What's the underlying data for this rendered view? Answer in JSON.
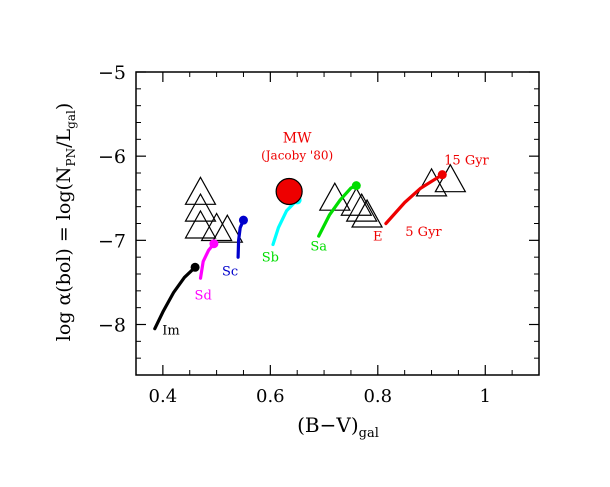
{
  "chart_data": {
    "type": "scatter",
    "xlabel": "(B−V)",
    "xlabel_sub": "gal",
    "ylabel_parts": [
      "log α(bol) = log(N",
      "PN",
      "/L",
      "gal",
      ")"
    ],
    "xlim": [
      0.35,
      1.1
    ],
    "ylim": [
      -8.6,
      -5
    ],
    "x_ticks": [
      0.4,
      0.6,
      0.8,
      1.0
    ],
    "x_tick_labels": [
      "0.4",
      "0.6",
      "0.8",
      "1"
    ],
    "y_ticks": [
      -8,
      -7,
      -6,
      -5
    ],
    "y_tick_labels": [
      "−8",
      "−7",
      "−6",
      "−5"
    ],
    "grid": false,
    "series": [
      {
        "name": "Im",
        "color": "#000000",
        "x": [
          0.385,
          0.4,
          0.42,
          0.44,
          0.46
        ],
        "y": [
          -8.05,
          -7.85,
          -7.62,
          -7.44,
          -7.32
        ],
        "end": [
          0.46,
          -7.32
        ]
      },
      {
        "name": "Sd",
        "color": "#ff00ff",
        "x": [
          0.47,
          0.475,
          0.485,
          0.495
        ],
        "y": [
          -7.45,
          -7.25,
          -7.12,
          -7.04
        ],
        "end": [
          0.495,
          -7.04
        ]
      },
      {
        "name": "Sc",
        "color": "#0000cc",
        "x": [
          0.54,
          0.541,
          0.544,
          0.55
        ],
        "y": [
          -7.2,
          -7.0,
          -6.85,
          -6.76
        ],
        "end": [
          0.55,
          -6.76
        ]
      },
      {
        "name": "Sb",
        "color": "#00ffff",
        "x": [
          0.605,
          0.615,
          0.63,
          0.65
        ],
        "y": [
          -7.05,
          -6.85,
          -6.65,
          -6.52
        ],
        "end": [
          0.65,
          -6.52
        ]
      },
      {
        "name": "Sa",
        "color": "#00dd00",
        "x": [
          0.69,
          0.71,
          0.73,
          0.75,
          0.76
        ],
        "y": [
          -6.95,
          -6.7,
          -6.52,
          -6.38,
          -6.35
        ],
        "end": [
          0.76,
          -6.35
        ]
      },
      {
        "name": "E",
        "color": "#ee0000",
        "x": [
          0.815,
          0.85,
          0.88,
          0.92
        ],
        "y": [
          -6.8,
          -6.55,
          -6.38,
          -6.22
        ],
        "end": [
          0.92,
          -6.22
        ]
      }
    ],
    "series_labels": [
      {
        "text": "Im",
        "color": "#000000",
        "x": 0.415,
        "y": -8.12
      },
      {
        "text": "Sd",
        "color": "#ff00ff",
        "x": 0.475,
        "y": -7.7
      },
      {
        "text": "Sc",
        "color": "#0000cc",
        "x": 0.525,
        "y": -7.42
      },
      {
        "text": "Sb",
        "color": "#00dd00",
        "x": 0.6,
        "y": -7.25
      },
      {
        "text": "Sa",
        "color": "#00dd00",
        "x": 0.69,
        "y": -7.12
      },
      {
        "text": "E",
        "color": "#ee0000",
        "x": 0.8,
        "y": -7.0
      },
      {
        "text": "5 Gyr",
        "color": "#ee0000",
        "x": 0.885,
        "y": -6.95
      },
      {
        "text": "15 Gyr",
        "color": "#ee0000",
        "x": 0.965,
        "y": -6.1
      }
    ],
    "annotations": {
      "mw_title": "MW",
      "mw_sub": "(Jacoby '80)",
      "mw_point": {
        "x": 0.635,
        "y": -6.42
      },
      "color": "#ee0000"
    },
    "triangles": [
      {
        "x": 0.47,
        "y": -6.45
      },
      {
        "x": 0.47,
        "y": -6.65
      },
      {
        "x": 0.47,
        "y": -6.85
      },
      {
        "x": 0.5,
        "y": -6.88
      },
      {
        "x": 0.52,
        "y": -6.9
      },
      {
        "x": 0.72,
        "y": -6.52
      },
      {
        "x": 0.76,
        "y": -6.58
      },
      {
        "x": 0.77,
        "y": -6.65
      },
      {
        "x": 0.78,
        "y": -6.72
      },
      {
        "x": 0.9,
        "y": -6.35
      },
      {
        "x": 0.935,
        "y": -6.3
      }
    ]
  }
}
